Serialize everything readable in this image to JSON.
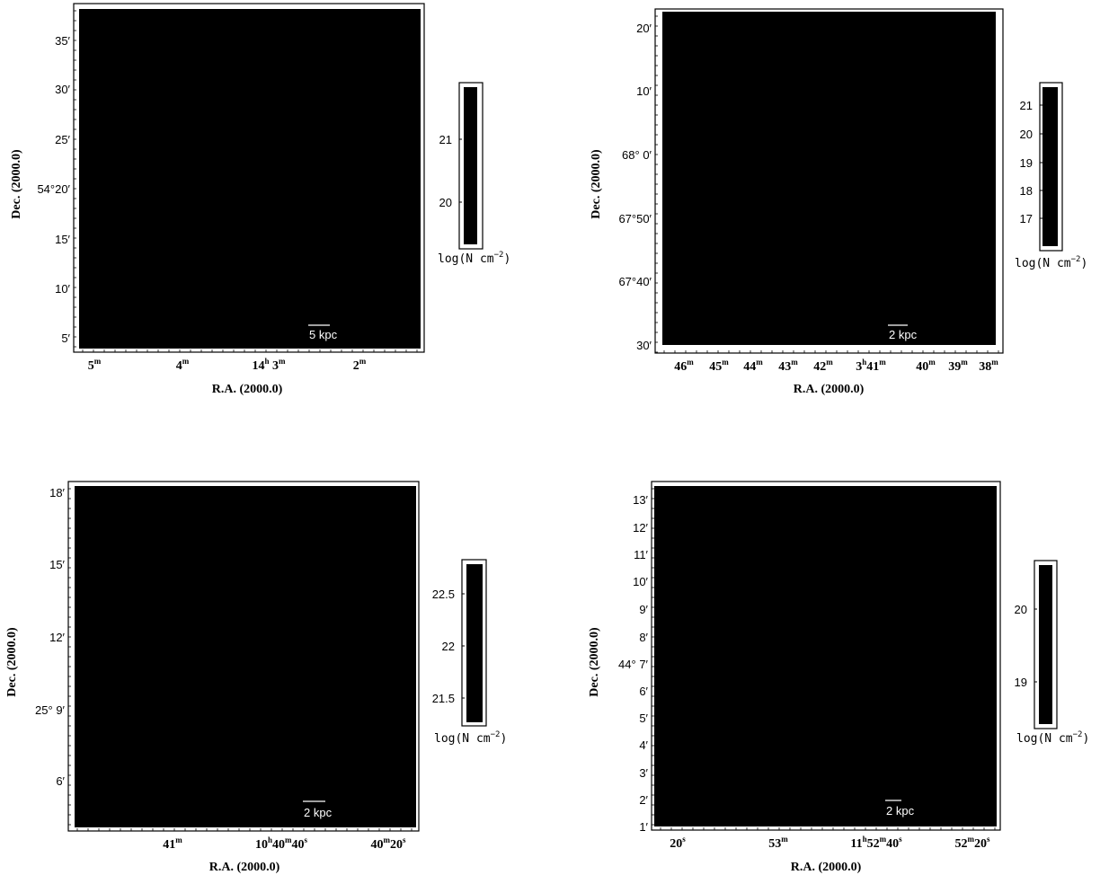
{
  "chart_data": [
    {
      "type": "heatmap",
      "xlabel": "R.A. (2000.0)",
      "ylabel": "Dec. (2000.0)",
      "x_ticks": [
        {
          "label": "5",
          "sup": "m"
        },
        {
          "label": "4",
          "sup": "m"
        },
        {
          "label": "14",
          "sup": "h",
          "tail": " 3",
          "sup2": "m"
        },
        {
          "label": "2",
          "sup": "m"
        }
      ],
      "y_ticks": [
        "35′",
        "30′",
        "25′",
        "54°20′",
        "15′",
        "10′",
        "5′"
      ],
      "colorbar": {
        "ticks": [
          "21",
          "20"
        ],
        "label": "log(N cm",
        "label_sup": "−2",
        "label_end": ")"
      },
      "scale_bar": "5 kpc"
    },
    {
      "type": "heatmap",
      "xlabel": "R.A. (2000.0)",
      "ylabel": "Dec. (2000.0)",
      "x_ticks": [
        {
          "label": "46",
          "sup": "m"
        },
        {
          "label": "45",
          "sup": "m"
        },
        {
          "label": "44",
          "sup": "m"
        },
        {
          "label": "43",
          "sup": "m"
        },
        {
          "label": "42",
          "sup": "m"
        },
        {
          "label": "3",
          "sup": "h",
          "tail": "41",
          "sup2": "m"
        },
        {
          "label": "40",
          "sup": "m"
        },
        {
          "label": "39",
          "sup": "m"
        },
        {
          "label": "38",
          "sup": "m"
        }
      ],
      "y_ticks": [
        "20′",
        "10′",
        "68° 0′",
        "67°50′",
        "67°40′",
        "30′"
      ],
      "colorbar": {
        "ticks": [
          "21",
          "20",
          "19",
          "18",
          "17"
        ],
        "label": "log(N cm",
        "label_sup": "−2",
        "label_end": ")"
      },
      "scale_bar": "2 kpc"
    },
    {
      "type": "heatmap",
      "xlabel": "R.A. (2000.0)",
      "ylabel": "Dec. (2000.0)",
      "x_ticks": [
        {
          "label": "41",
          "sup": "m"
        },
        {
          "label": "10",
          "sup": "h",
          "tail": "40",
          "sup2": "m",
          "tail2": "40",
          "sup3": "s"
        },
        {
          "label": "40",
          "sup": "m",
          "tail": "20",
          "sup2": "s"
        }
      ],
      "y_ticks": [
        "18′",
        "15′",
        "12′",
        "25° 9′",
        "6′"
      ],
      "colorbar": {
        "ticks": [
          "22.5",
          "22",
          "21.5"
        ],
        "label": "log(N cm",
        "label_sup": "−2",
        "label_end": ")"
      },
      "scale_bar": "2 kpc"
    },
    {
      "type": "heatmap",
      "xlabel": "R.A. (2000.0)",
      "ylabel": "Dec. (2000.0)",
      "x_ticks": [
        {
          "label": "20",
          "sup": "s"
        },
        {
          "label": "53",
          "sup": "m"
        },
        {
          "label": "11",
          "sup": "h",
          "tail": "52",
          "sup2": "m",
          "tail2": "40",
          "sup3": "s"
        },
        {
          "label": "52",
          "sup": "m",
          "tail": "20",
          "sup2": "s"
        }
      ],
      "y_ticks": [
        "13′",
        "12′",
        "11′",
        "10′",
        "9′",
        "8′",
        "44° 7′",
        "6′",
        "5′",
        "4′",
        "3′",
        "2′",
        "1′"
      ],
      "colorbar": {
        "ticks": [
          "20",
          "19"
        ],
        "label": "log(N cm",
        "label_sup": "−2",
        "label_end": ")"
      },
      "scale_bar": "2 kpc"
    }
  ]
}
